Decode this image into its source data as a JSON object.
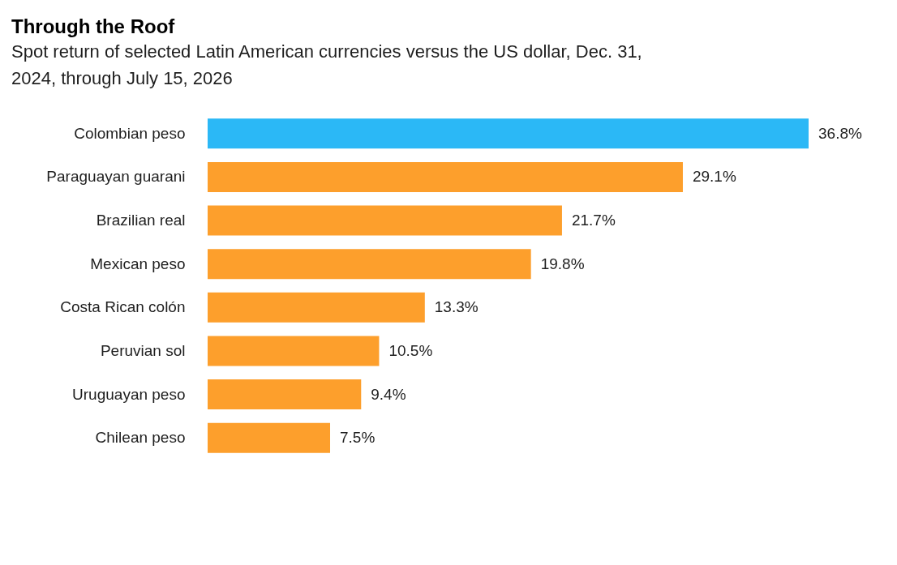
{
  "chart_data": {
    "type": "bar",
    "orientation": "horizontal",
    "title": "Through the Roof",
    "subtitle": "Spot return of selected Latin American currencies versus the US dollar, Dec. 31, 2024, through July 15, 2026",
    "categories": [
      "Colombian peso",
      "Paraguayan guarani",
      "Brazilian real",
      "Mexican peso",
      "Costa Rican colón",
      "Peruvian sol",
      "Uruguayan peso",
      "Chilean peso"
    ],
    "values": [
      36.8,
      29.1,
      21.7,
      19.8,
      13.3,
      10.5,
      9.4,
      7.5
    ],
    "colors": [
      "#2bb8f6",
      "#fd9f2c",
      "#fd9f2c",
      "#fd9f2c",
      "#fd9f2c",
      "#fd9f2c",
      "#fd9f2c",
      "#fd9f2c"
    ],
    "value_labels": [
      "36.8%",
      "29.1%",
      "21.7%",
      "19.8%",
      "13.3%",
      "10.5%",
      "9.4%",
      "7.5%"
    ],
    "tick_labels": "y"
  }
}
